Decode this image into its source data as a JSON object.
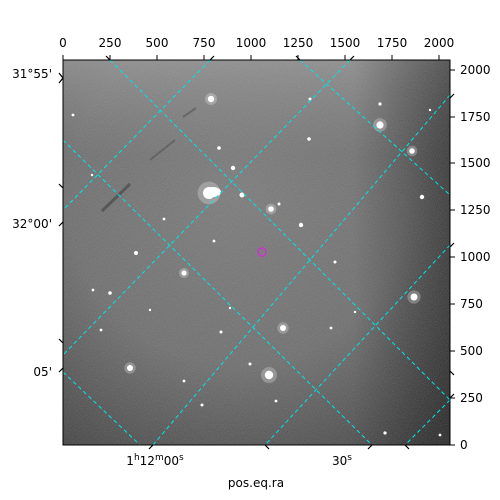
{
  "image": {
    "description": "Astronomical sky image, grayscale, with cyan dashed RA/Dec coordinate grid and a magenta circle marker at the center",
    "grid_color": "#00e5e5",
    "marker_color": "#cc33cc",
    "frame_color": "#000000"
  },
  "axes": {
    "top_pixel_ticks": [
      "0",
      "250",
      "500",
      "750",
      "1000",
      "1250",
      "1500",
      "1750",
      "2000"
    ],
    "right_pixel_ticks": [
      "0",
      "250",
      "500",
      "750",
      "1000",
      "1250",
      "1500",
      "1750",
      "2000"
    ],
    "left_dec_ticks": [
      "31°55'",
      "32°00'",
      "05'"
    ],
    "bottom_ra_ticks": [
      {
        "main": "1",
        "h": "h",
        "mid": "12",
        "m": "m",
        "sec": "00",
        "s": "s"
      },
      {
        "main": "30",
        "s": "s"
      }
    ],
    "bottom_label": "pos.eq.ra"
  }
}
